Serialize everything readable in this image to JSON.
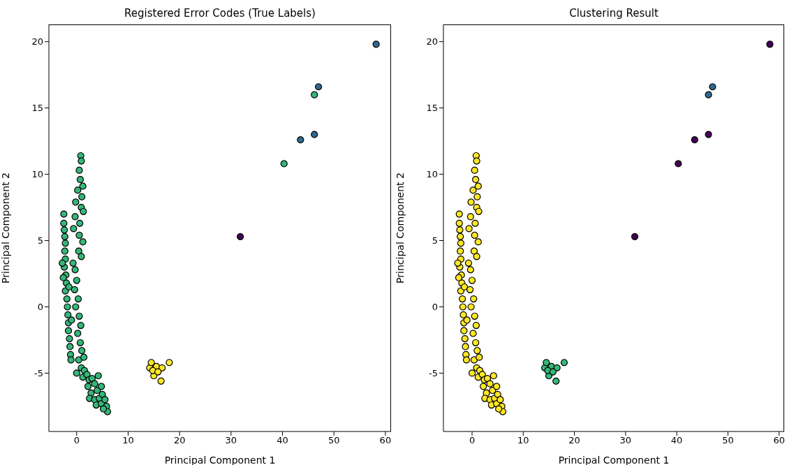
{
  "chart_data": [
    {
      "type": "scatter",
      "title": "Registered Error Codes (True Labels)",
      "xlabel": "Principal Component 1",
      "ylabel": "Principal Component 2",
      "xlim": [
        -5.4,
        61.1
      ],
      "xticks": [
        0,
        10,
        20,
        30,
        40,
        50,
        60
      ],
      "ylim": [
        -9.4,
        21.3
      ],
      "yticks": [
        -5,
        0,
        5,
        10,
        15,
        20
      ],
      "marker": "circle",
      "series": [
        {
          "color": "#35b779",
          "x": [
            -2.5,
            -2.5,
            -2.4,
            -2.3,
            -2.2,
            -2.3,
            -2.2,
            -2.4,
            -2.1,
            -2,
            -2.2,
            -1.9,
            -1.8,
            -1.7,
            -1.6,
            -1.6,
            -1.4,
            -1.3,
            -1.2,
            -1.1,
            -2.6,
            -2.8,
            -1.5,
            -1,
            0.8,
            0.9,
            0.5,
            0.7,
            1.2,
            0.2,
            1,
            -0.2,
            0.9,
            1.3,
            -0.3,
            0.6,
            -0.6,
            0.5,
            1.2,
            0.4,
            0.9,
            -0.7,
            -0.3,
            0,
            -0.4,
            0.3,
            -0.2,
            0.5,
            0.8,
            0.2,
            0.7,
            1,
            0.4,
            1.4,
            0.9,
            0,
            1.5,
            1.2,
            2,
            2.4,
            3,
            2.2,
            3.5,
            4.2,
            2.8,
            4,
            4.8,
            2.5,
            3.5,
            4.4,
            5,
            3.8,
            4.8,
            5.5,
            5.8,
            6,
            5.2,
            40.3,
            46.2
          ],
          "values": [
            7,
            6.3,
            5.8,
            5.3,
            4.8,
            4.2,
            3.6,
            3,
            2.4,
            1.8,
            1.2,
            0.6,
            0,
            -0.6,
            -1.2,
            -1.8,
            -2.4,
            -3,
            -3.6,
            -4,
            2.2,
            3.3,
            1.5,
            -1,
            11.4,
            11,
            10.3,
            9.6,
            9.1,
            8.8,
            8.3,
            7.9,
            7.5,
            7.2,
            6.8,
            6.3,
            5.9,
            5.4,
            4.9,
            4.2,
            3.8,
            3.3,
            2.8,
            2,
            1.3,
            0.6,
            0,
            -0.7,
            -1.4,
            -2,
            -2.7,
            -3.3,
            -4,
            -3.8,
            -4.6,
            -5,
            -4.8,
            -5.3,
            -5.1,
            -5.5,
            -5.4,
            -6,
            -5.8,
            -5.2,
            -6.5,
            -6.3,
            -6,
            -6.9,
            -7,
            -6.9,
            -6.6,
            -7.4,
            -7.3,
            -7,
            -7.5,
            -7.9,
            -7.7,
            10.8,
            16
          ]
        },
        {
          "color": "#fde725",
          "x": [
            14.2,
            14.5,
            15,
            15.5,
            16.4,
            16.6,
            18,
            14.8,
            15.8
          ],
          "values": [
            -4.6,
            -4.2,
            -5.2,
            -4.5,
            -5.6,
            -4.6,
            -4.2,
            -4.8,
            -4.9
          ]
        },
        {
          "color": "#31688e",
          "x": [
            58.2,
            47,
            43.5,
            46.2
          ],
          "values": [
            19.8,
            16.6,
            12.6,
            13
          ]
        },
        {
          "color": "#440154",
          "x": [
            31.8
          ],
          "values": [
            5.3
          ]
        }
      ]
    },
    {
      "type": "scatter",
      "title": "Clustering Result",
      "xlabel": "Principal Component 1",
      "ylabel": "Principal Component 2",
      "xlim": [
        -5.6,
        61
      ],
      "xticks": [
        0,
        10,
        20,
        30,
        40,
        50,
        60
      ],
      "ylim": [
        -9.4,
        21.3
      ],
      "yticks": [
        -5,
        0,
        5,
        10,
        15,
        20
      ],
      "marker": "circle",
      "series": [
        {
          "color": "#fde725",
          "x": [
            -2.5,
            -2.5,
            -2.4,
            -2.3,
            -2.2,
            -2.3,
            -2.2,
            -2.4,
            -2.1,
            -2,
            -2.2,
            -1.9,
            -1.8,
            -1.7,
            -1.6,
            -1.6,
            -1.4,
            -1.3,
            -1.2,
            -1.1,
            -2.6,
            -2.8,
            -1.5,
            -1,
            0.8,
            0.9,
            0.5,
            0.7,
            1.2,
            0.2,
            1,
            -0.2,
            0.9,
            1.3,
            -0.3,
            0.6,
            -0.6,
            0.5,
            1.2,
            0.4,
            0.9,
            -0.7,
            -0.3,
            0,
            -0.4,
            0.3,
            -0.2,
            0.5,
            0.8,
            0.2,
            0.7,
            1,
            0.4,
            1.4,
            0.9,
            0,
            1.5,
            1.2,
            2,
            2.4,
            3,
            2.2,
            3.5,
            4.2,
            2.8,
            4,
            4.8,
            2.5,
            3.5,
            4.4,
            5,
            3.8,
            4.8,
            5.5,
            5.8,
            6,
            5.2
          ],
          "values": [
            7,
            6.3,
            5.8,
            5.3,
            4.8,
            4.2,
            3.6,
            3,
            2.4,
            1.8,
            1.2,
            0.6,
            0,
            -0.6,
            -1.2,
            -1.8,
            -2.4,
            -3,
            -3.6,
            -4,
            2.2,
            3.3,
            1.5,
            -1,
            11.4,
            11,
            10.3,
            9.6,
            9.1,
            8.8,
            8.3,
            7.9,
            7.5,
            7.2,
            6.8,
            6.3,
            5.9,
            5.4,
            4.9,
            4.2,
            3.8,
            3.3,
            2.8,
            2,
            1.3,
            0.6,
            0,
            -0.7,
            -1.4,
            -2,
            -2.7,
            -3.3,
            -4,
            -3.8,
            -4.6,
            -5,
            -4.8,
            -5.3,
            -5.1,
            -5.5,
            -5.4,
            -6,
            -5.8,
            -5.2,
            -6.5,
            -6.3,
            -6,
            -6.9,
            -7,
            -6.9,
            -6.6,
            -7.4,
            -7.3,
            -7,
            -7.5,
            -7.9,
            -7.7
          ]
        },
        {
          "color": "#35b779",
          "x": [
            14.2,
            14.5,
            15,
            15.5,
            16.4,
            16.6,
            18,
            14.8,
            15.8
          ],
          "values": [
            -4.6,
            -4.2,
            -5.2,
            -4.5,
            -5.6,
            -4.6,
            -4.2,
            -4.8,
            -4.9
          ]
        },
        {
          "color": "#31688e",
          "x": [
            47,
            46.2
          ],
          "values": [
            16.6,
            16
          ]
        },
        {
          "color": "#440154",
          "x": [
            58.2,
            31.8,
            40.3,
            43.5,
            46.2
          ],
          "values": [
            19.8,
            5.3,
            10.8,
            12.6,
            13
          ]
        }
      ]
    }
  ]
}
